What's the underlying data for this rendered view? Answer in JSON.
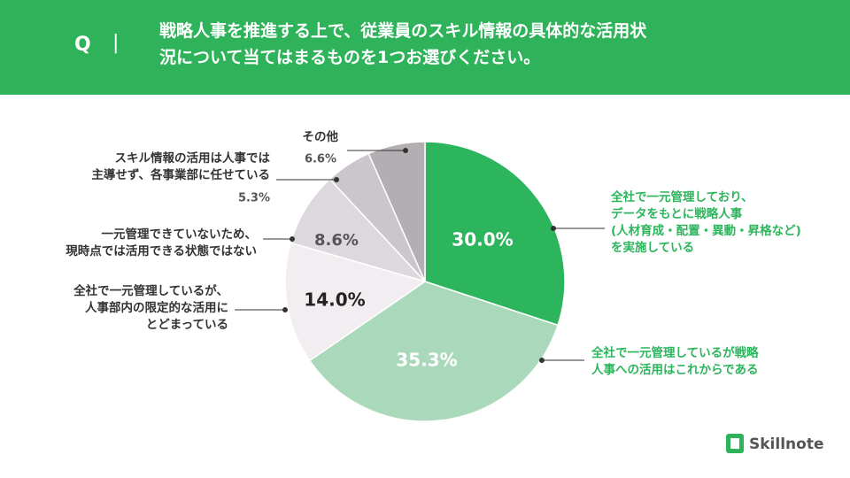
{
  "header": {
    "q": "Q",
    "separator": "|",
    "title": "戦略人事を推進する上で、従業員のスキル情報の具体的な活用状\n況について当てはまるものを1つお選びください。"
  },
  "brand": "Skillnote",
  "chart_data": {
    "type": "pie",
    "categories": [
      "全社で一元管理しており、\nデータをもとに戦略人事\n(人材育成・配置・異動・昇格など)\nを実施している",
      "全社で一元管理しているが戦略\n人事への活用はこれからである",
      "全社で一元管理しているが、\n人事部内の限定的な活用に\nとどまっている",
      "一元管理できていないため、\n現時点では活用できる状態ではない",
      "スキル情報の活用は人事では\n主導せず、各事業部に任せている",
      "その他"
    ],
    "values": [
      30.0,
      35.3,
      14.0,
      8.6,
      5.3,
      6.6
    ],
    "value_labels": [
      "30.0%",
      "35.3%",
      "14.0%",
      "8.6%",
      "5.3%",
      "6.6%"
    ],
    "colors": [
      "#2db55d",
      "#a9d9ba",
      "#f1edf1",
      "#ddd8dd",
      "#cbc6cb",
      "#b2aeb2"
    ],
    "label_colors": [
      "#2db55d",
      "#2db55d",
      "#333333",
      "#333333",
      "#333333",
      "#333333"
    ]
  }
}
